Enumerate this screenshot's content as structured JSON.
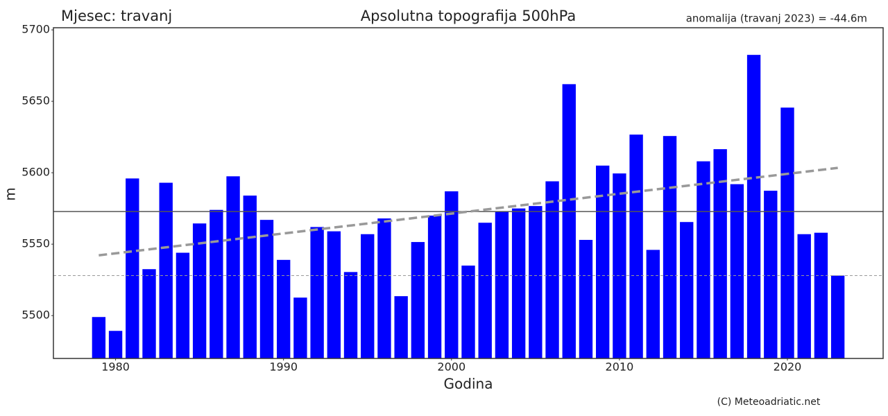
{
  "chart_data": {
    "type": "bar",
    "title": "Apsolutna topografija 500hPa",
    "subtitle": "Mjesec: travanj",
    "annotation": "anomalija (travanj 2023) = -44.6m",
    "xlabel": "Godina",
    "ylabel": "m",
    "credit": "(C) Meteoadriatic.net",
    "x": [
      1979,
      1980,
      1981,
      1982,
      1983,
      1984,
      1985,
      1986,
      1987,
      1988,
      1989,
      1990,
      1991,
      1992,
      1993,
      1994,
      1995,
      1996,
      1997,
      1998,
      1999,
      2000,
      2001,
      2002,
      2003,
      2004,
      2005,
      2006,
      2007,
      2008,
      2009,
      2010,
      2011,
      2012,
      2013,
      2014,
      2015,
      2016,
      2017,
      2018,
      2019,
      2020,
      2021,
      2022,
      2023
    ],
    "values": [
      5499,
      5489.3,
      5596,
      5532.5,
      5593,
      5544,
      5564.5,
      5574,
      5597.5,
      5584,
      5567,
      5539,
      5512.6,
      5562,
      5559,
      5530.5,
      5557,
      5568,
      5513.6,
      5551.5,
      5570,
      5587,
      5535,
      5565,
      5573,
      5575,
      5576.7,
      5594,
      5662,
      5553,
      5605,
      5599.5,
      5626.7,
      5546,
      5625.7,
      5565.5,
      5608,
      5616.5,
      5592,
      5682.5,
      5587.4,
      5645.6,
      5557,
      5558,
      5528
    ],
    "color": "#0000ff",
    "xlim": [
      1976.3,
      2025.7
    ],
    "xticks": [
      1980,
      1990,
      2000,
      2010,
      2020
    ],
    "ylim": [
      5470,
      5701.5
    ],
    "yticks": [
      5500,
      5550,
      5600,
      5650,
      5700
    ],
    "mean_line": 5572.8,
    "current_line": 5528,
    "trend": {
      "x": [
        1979,
        2023
      ],
      "values": [
        5542.2,
        5603.4
      ],
      "color": "#999999"
    },
    "grid": false
  }
}
